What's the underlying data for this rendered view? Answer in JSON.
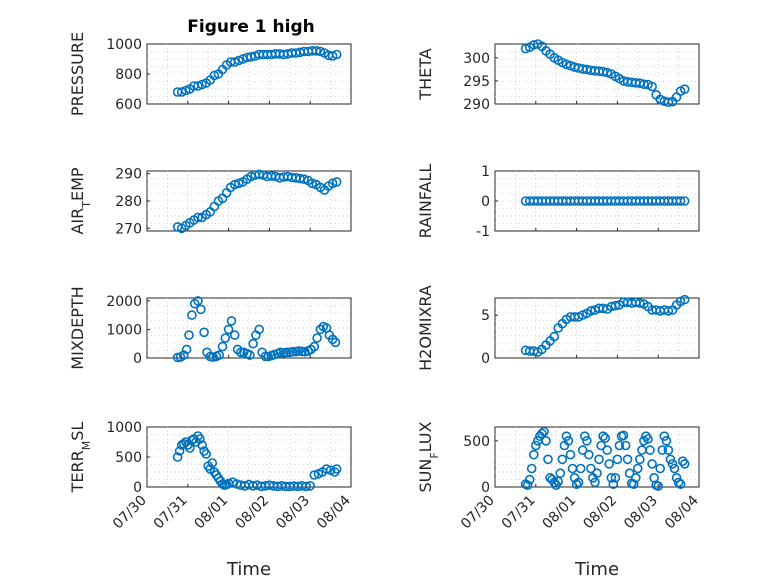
{
  "figure_title": "Figure 1 high",
  "chart_data": [
    {
      "type": "scatter",
      "ylabel": "PRESSURE",
      "ylim": [
        600,
        1000
      ],
      "yticks": [
        600,
        800,
        1000
      ],
      "ytick_labels": [
        "600",
        "800",
        "1000"
      ],
      "xlim": [
        "07/30",
        "08/04"
      ],
      "xticks": [
        "07/30",
        "07/31",
        "08/01",
        "08/02",
        "08/03",
        "08/04"
      ],
      "show_x_tick_labels": false,
      "grid": true,
      "marker_color": "#0072BD",
      "x": [
        0.75,
        0.85,
        0.95,
        1.05,
        1.15,
        1.25,
        1.35,
        1.45,
        1.55,
        1.65,
        1.75,
        1.85,
        1.95,
        2.05,
        2.15,
        2.25,
        2.35,
        2.45,
        2.55,
        2.65,
        2.75,
        2.85,
        2.95,
        3.05,
        3.15,
        3.25,
        3.35,
        3.45,
        3.55,
        3.65,
        3.75,
        3.85,
        3.95,
        4.05,
        4.15,
        4.25,
        4.35,
        4.45,
        4.55,
        4.65
      ],
      "y": [
        680,
        680,
        690,
        700,
        720,
        720,
        730,
        740,
        760,
        790,
        800,
        830,
        860,
        880,
        880,
        890,
        900,
        910,
        915,
        920,
        930,
        930,
        930,
        930,
        935,
        935,
        930,
        935,
        940,
        940,
        945,
        950,
        950,
        955,
        955,
        950,
        940,
        925,
        920,
        930
      ]
    },
    {
      "type": "scatter",
      "ylabel": "THETA",
      "ylim": [
        290,
        303
      ],
      "yticks": [
        290,
        295,
        300
      ],
      "ytick_labels": [
        "290",
        "295",
        "300"
      ],
      "xlim": [
        "07/30",
        "08/04"
      ],
      "xticks": [
        "07/30",
        "07/31",
        "08/01",
        "08/02",
        "08/03",
        "08/04"
      ],
      "show_x_tick_labels": false,
      "grid": true,
      "marker_color": "#0072BD",
      "x": [
        0.75,
        0.85,
        0.95,
        1.05,
        1.15,
        1.25,
        1.35,
        1.45,
        1.55,
        1.65,
        1.75,
        1.85,
        1.95,
        2.05,
        2.15,
        2.25,
        2.35,
        2.45,
        2.55,
        2.65,
        2.75,
        2.85,
        2.95,
        3.05,
        3.15,
        3.25,
        3.35,
        3.45,
        3.55,
        3.65,
        3.75,
        3.85,
        3.95,
        4.05,
        4.15,
        4.25,
        4.35,
        4.45,
        4.55,
        4.65
      ],
      "y": [
        302,
        302.3,
        302.8,
        303,
        302.5,
        301.5,
        300.8,
        300,
        299.5,
        299,
        298.6,
        298.3,
        298,
        297.8,
        297.6,
        297.5,
        297.3,
        297.2,
        297.1,
        297,
        296.8,
        296.5,
        296,
        295.5,
        295,
        294.8,
        294.7,
        294.6,
        294.5,
        294.3,
        294.2,
        293.8,
        292,
        291,
        290.6,
        290.4,
        290.5,
        291.5,
        292.8,
        293.2
      ]
    },
    {
      "type": "scatter",
      "ylabel": "AIR_T_EMP",
      "ylim": [
        269,
        291
      ],
      "yticks": [
        270,
        280,
        290
      ],
      "ytick_labels": [
        "270",
        "280",
        "290"
      ],
      "xlim": [
        "07/30",
        "08/04"
      ],
      "xticks": [
        "07/30",
        "07/31",
        "08/01",
        "08/02",
        "08/03",
        "08/04"
      ],
      "show_x_tick_labels": false,
      "grid": true,
      "marker_color": "#0072BD",
      "x": [
        0.75,
        0.85,
        0.95,
        1.05,
        1.15,
        1.25,
        1.35,
        1.45,
        1.55,
        1.65,
        1.75,
        1.85,
        1.95,
        2.05,
        2.15,
        2.25,
        2.35,
        2.45,
        2.55,
        2.65,
        2.75,
        2.85,
        2.95,
        3.05,
        3.15,
        3.25,
        3.35,
        3.45,
        3.55,
        3.65,
        3.75,
        3.85,
        3.95,
        4.05,
        4.15,
        4.25,
        4.35,
        4.45,
        4.55,
        4.65
      ],
      "y": [
        270.5,
        270,
        271,
        272,
        273,
        274,
        274,
        275,
        276,
        278,
        280,
        281,
        283,
        285,
        286,
        286.5,
        287,
        288,
        289,
        289.5,
        289.8,
        289.5,
        289,
        289.2,
        289,
        288.5,
        288.8,
        289,
        288.6,
        288.5,
        288.2,
        288,
        287.5,
        286.5,
        286,
        285,
        284,
        285.5,
        286.5,
        287
      ]
    },
    {
      "type": "scatter",
      "ylabel": "RAINFALL",
      "ylim": [
        -1,
        1
      ],
      "yticks": [
        -1,
        0,
        1
      ],
      "ytick_labels": [
        "-1",
        "0",
        "1"
      ],
      "xlim": [
        "07/30",
        "08/04"
      ],
      "xticks": [
        "07/30",
        "07/31",
        "08/01",
        "08/02",
        "08/03",
        "08/04"
      ],
      "show_x_tick_labels": false,
      "grid": true,
      "marker_color": "#0072BD",
      "x": [
        0.75,
        0.85,
        0.95,
        1.05,
        1.15,
        1.25,
        1.35,
        1.45,
        1.55,
        1.65,
        1.75,
        1.85,
        1.95,
        2.05,
        2.15,
        2.25,
        2.35,
        2.45,
        2.55,
        2.65,
        2.75,
        2.85,
        2.95,
        3.05,
        3.15,
        3.25,
        3.35,
        3.45,
        3.55,
        3.65,
        3.75,
        3.85,
        3.95,
        4.05,
        4.15,
        4.25,
        4.35,
        4.45,
        4.55,
        4.65
      ],
      "y": [
        0,
        0,
        0,
        0,
        0,
        0,
        0,
        0,
        0,
        0,
        0,
        0,
        0,
        0,
        0,
        0,
        0,
        0,
        0,
        0,
        0,
        0,
        0,
        0,
        0,
        0,
        0,
        0,
        0,
        0,
        0,
        0,
        0,
        0,
        0,
        0,
        0,
        0,
        0,
        0
      ]
    },
    {
      "type": "scatter",
      "ylabel": "MIXDEPTH",
      "ylim": [
        0,
        2100
      ],
      "yticks": [
        0,
        1000,
        2000
      ],
      "ytick_labels": [
        "0",
        "1000",
        "2000"
      ],
      "xlim": [
        "07/30",
        "08/04"
      ],
      "xticks": [
        "07/30",
        "07/31",
        "08/01",
        "08/02",
        "08/03",
        "08/04"
      ],
      "show_x_tick_labels": false,
      "grid": true,
      "marker_color": "#0072BD",
      "x": [
        0.75,
        0.82,
        0.9,
        0.97,
        1.03,
        1.1,
        1.17,
        1.25,
        1.32,
        1.4,
        1.47,
        1.55,
        1.62,
        1.7,
        1.77,
        1.85,
        1.92,
        2.0,
        2.07,
        2.15,
        2.22,
        2.3,
        2.37,
        2.45,
        2.52,
        2.6,
        2.67,
        2.75,
        2.82,
        2.9,
        2.97,
        3.05,
        3.12,
        3.2,
        3.27,
        3.35,
        3.42,
        3.5,
        3.57,
        3.65,
        3.72,
        3.8,
        3.87,
        3.95,
        4.02,
        4.1,
        4.17,
        4.25,
        4.32,
        4.4,
        4.47,
        4.55,
        4.62
      ],
      "y": [
        20,
        30,
        100,
        300,
        800,
        1500,
        1900,
        2000,
        1700,
        900,
        200,
        50,
        30,
        60,
        100,
        400,
        700,
        1000,
        1300,
        800,
        300,
        200,
        200,
        150,
        100,
        500,
        800,
        1000,
        200,
        60,
        50,
        80,
        120,
        150,
        200,
        180,
        200,
        200,
        220,
        220,
        250,
        230,
        220,
        250,
        300,
        400,
        700,
        1000,
        1100,
        1050,
        800,
        650,
        550
      ]
    },
    {
      "type": "scatter",
      "ylabel": "H2OMIXRA",
      "ylim": [
        0,
        7
      ],
      "yticks": [
        0,
        5
      ],
      "ytick_labels": [
        "0",
        "5"
      ],
      "xlim": [
        "07/30",
        "08/04"
      ],
      "xticks": [
        "07/30",
        "07/31",
        "08/01",
        "08/02",
        "08/03",
        "08/04"
      ],
      "show_x_tick_labels": false,
      "grid": true,
      "marker_color": "#0072BD",
      "x": [
        0.75,
        0.85,
        0.95,
        1.05,
        1.15,
        1.25,
        1.35,
        1.45,
        1.55,
        1.65,
        1.75,
        1.85,
        1.95,
        2.05,
        2.15,
        2.25,
        2.35,
        2.45,
        2.55,
        2.65,
        2.75,
        2.85,
        2.95,
        3.05,
        3.15,
        3.25,
        3.35,
        3.45,
        3.55,
        3.65,
        3.75,
        3.85,
        3.95,
        4.05,
        4.15,
        4.25,
        4.35,
        4.45,
        4.55,
        4.65
      ],
      "y": [
        0.9,
        0.8,
        0.8,
        0.7,
        1,
        1.5,
        2,
        2.5,
        3.5,
        4,
        4.5,
        4.8,
        4.8,
        4.8,
        5,
        5.2,
        5.5,
        5.6,
        5.8,
        5.8,
        5.7,
        6,
        6.1,
        6.2,
        6.5,
        6.5,
        6.4,
        6.5,
        6.4,
        6.3,
        6,
        5.6,
        5.6,
        5.5,
        5.6,
        5.5,
        5.6,
        6.2,
        6.6,
        6.8
      ]
    },
    {
      "type": "scatter",
      "ylabel": "TERR_M_SL",
      "ylim": [
        0,
        1000
      ],
      "yticks": [
        0,
        500,
        1000
      ],
      "ytick_labels": [
        "0",
        "500",
        "1000"
      ],
      "xlim": [
        "07/30",
        "08/04"
      ],
      "xticks": [
        "07/30",
        "07/31",
        "08/01",
        "08/02",
        "08/03",
        "08/04"
      ],
      "show_x_tick_labels": true,
      "tick_label_rotation": -45,
      "xlabel": "Time",
      "grid": true,
      "marker_color": "#0072BD",
      "x": [
        0.75,
        0.8,
        0.85,
        0.9,
        0.95,
        1.0,
        1.05,
        1.1,
        1.15,
        1.2,
        1.25,
        1.3,
        1.35,
        1.4,
        1.45,
        1.5,
        1.55,
        1.6,
        1.65,
        1.7,
        1.75,
        1.8,
        1.85,
        1.9,
        1.95,
        2.0,
        2.1,
        2.2,
        2.3,
        2.4,
        2.5,
        2.6,
        2.7,
        2.8,
        2.9,
        3.0,
        3.1,
        3.2,
        3.3,
        3.4,
        3.5,
        3.6,
        3.7,
        3.8,
        3.9,
        4.0,
        4.1,
        4.2,
        4.3,
        4.4,
        4.5,
        4.6,
        4.65
      ],
      "y": [
        500,
        600,
        700,
        720,
        750,
        700,
        650,
        780,
        800,
        750,
        850,
        800,
        700,
        600,
        550,
        350,
        300,
        400,
        250,
        200,
        150,
        100,
        50,
        30,
        40,
        60,
        80,
        50,
        30,
        20,
        40,
        20,
        30,
        10,
        20,
        30,
        20,
        10,
        20,
        10,
        10,
        15,
        10,
        20,
        10,
        20,
        200,
        220,
        250,
        300,
        280,
        250,
        300
      ]
    },
    {
      "type": "scatter",
      "ylabel": "SUN_F_LUX",
      "ylim": [
        0,
        650
      ],
      "yticks": [
        0,
        500
      ],
      "ytick_labels": [
        "0",
        "500"
      ],
      "xlim": [
        "07/30",
        "08/04"
      ],
      "xticks": [
        "07/30",
        "07/31",
        "08/01",
        "08/02",
        "08/03",
        "08/04"
      ],
      "show_x_tick_labels": true,
      "tick_label_rotation": -45,
      "xlabel": "Time",
      "grid": true,
      "marker_color": "#0072BD",
      "x": [
        0.75,
        0.8,
        0.85,
        0.9,
        0.95,
        1.0,
        1.05,
        1.1,
        1.15,
        1.2,
        1.25,
        1.3,
        1.35,
        1.4,
        1.45,
        1.5,
        1.55,
        1.6,
        1.65,
        1.7,
        1.75,
        1.8,
        1.85,
        1.9,
        1.95,
        2.0,
        2.05,
        2.1,
        2.15,
        2.2,
        2.25,
        2.3,
        2.35,
        2.4,
        2.45,
        2.5,
        2.55,
        2.6,
        2.65,
        2.7,
        2.75,
        2.8,
        2.85,
        2.9,
        2.95,
        3.0,
        3.05,
        3.1,
        3.15,
        3.2,
        3.25,
        3.3,
        3.35,
        3.4,
        3.45,
        3.5,
        3.55,
        3.6,
        3.65,
        3.7,
        3.75,
        3.8,
        3.85,
        3.9,
        3.95,
        4.0,
        4.05,
        4.1,
        4.15,
        4.2,
        4.25,
        4.3,
        4.35,
        4.4,
        4.45,
        4.5,
        4.55,
        4.6,
        4.65
      ],
      "y": [
        30,
        20,
        80,
        200,
        350,
        450,
        500,
        550,
        580,
        600,
        500,
        300,
        100,
        80,
        50,
        20,
        60,
        150,
        300,
        450,
        550,
        500,
        350,
        200,
        100,
        30,
        50,
        200,
        400,
        550,
        500,
        350,
        200,
        100,
        50,
        150,
        300,
        450,
        550,
        530,
        400,
        250,
        100,
        30,
        100,
        300,
        450,
        550,
        560,
        450,
        300,
        150,
        40,
        30,
        100,
        200,
        300,
        400,
        500,
        550,
        520,
        400,
        250,
        100,
        20,
        10,
        200,
        400,
        550,
        500,
        400,
        300,
        250,
        200,
        100,
        50,
        30,
        280,
        250
      ]
    }
  ]
}
